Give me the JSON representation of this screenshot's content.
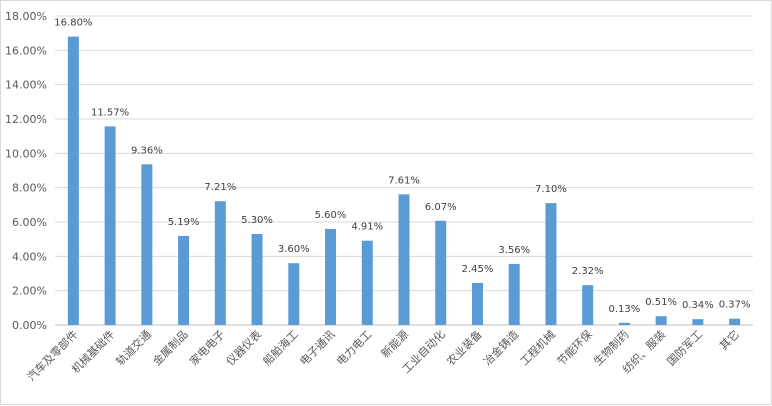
{
  "chart_data": {
    "type": "bar",
    "title": "",
    "xlabel": "",
    "ylabel": "",
    "ylim": [
      0,
      18
    ],
    "y_ticks": [
      "0.00%",
      "2.00%",
      "4.00%",
      "6.00%",
      "8.00%",
      "10.00%",
      "12.00%",
      "14.00%",
      "16.00%",
      "18.00%"
    ],
    "grid": true,
    "legend": "none",
    "bar_color": "#5b9bd5",
    "categories": [
      "汽车及零部件",
      "机械基础件",
      "轨道交通",
      "金属制品",
      "家电电子",
      "仪器仪表",
      "船舶海工",
      "电子通讯",
      "电力电工",
      "新能源",
      "工业自动化",
      "农业装备",
      "冶金铸造",
      "工程机械",
      "节能环保",
      "生物制药",
      "纺织、服装",
      "国防军工",
      "其它"
    ],
    "values": [
      16.8,
      11.57,
      9.36,
      5.19,
      7.21,
      5.3,
      3.6,
      5.6,
      4.91,
      7.61,
      6.07,
      2.45,
      3.56,
      7.1,
      2.32,
      0.13,
      0.51,
      0.34,
      0.37
    ],
    "data_labels": [
      "16.80%",
      "11.57%",
      "9.36%",
      "5.19%",
      "7.21%",
      "5.30%",
      "3.60%",
      "5.60%",
      "4.91%",
      "7.61%",
      "6.07%",
      "2.45%",
      "3.56%",
      "7.10%",
      "2.32%",
      "0.13%",
      "0.51%",
      "0.34%",
      "0.37%"
    ]
  }
}
